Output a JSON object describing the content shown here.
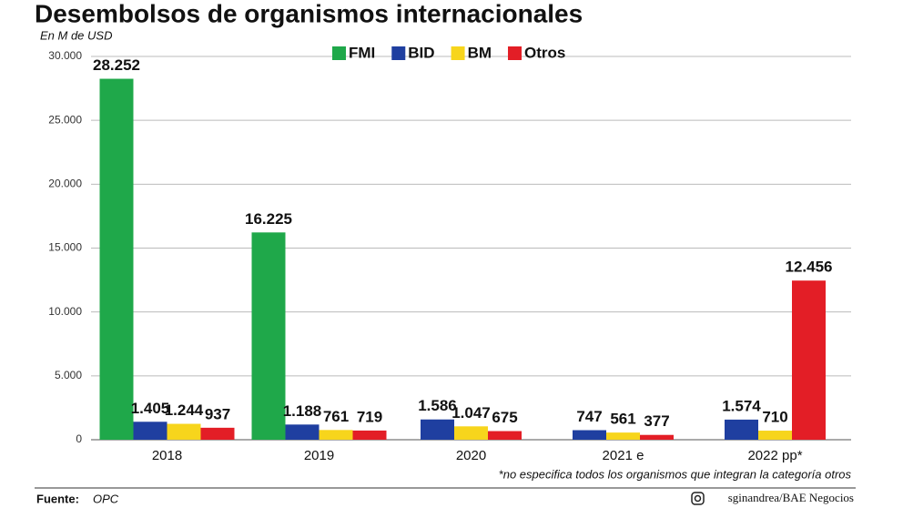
{
  "chart_data": {
    "type": "bar",
    "title": "Desembolsos de organismos internacionales",
    "subtitle": "En M de USD",
    "categories": [
      "2018",
      "2019",
      "2020",
      "2021 e",
      "2022 pp*"
    ],
    "series": [
      {
        "name": "FMI",
        "color": "#1fa84a",
        "values": [
          28252,
          16225,
          null,
          null,
          null
        ],
        "value_labels": [
          "28.252",
          "16.225",
          null,
          null,
          null
        ]
      },
      {
        "name": "BID",
        "color": "#1f3fa0",
        "values": [
          1405,
          1188,
          1586,
          747,
          1574
        ],
        "value_labels": [
          "1.405",
          "1.188",
          "1.586",
          "747",
          "1.574"
        ]
      },
      {
        "name": "BM",
        "color": "#f7d51c",
        "values": [
          1244,
          761,
          1047,
          561,
          710
        ],
        "value_labels": [
          "1.244",
          "761",
          "1.047",
          "561",
          "710"
        ]
      },
      {
        "name": "Otros",
        "color": "#e31e26",
        "values": [
          937,
          719,
          675,
          377,
          12456
        ],
        "value_labels": [
          "937",
          "719",
          "675",
          "377",
          "12.456"
        ]
      }
    ],
    "ylim": [
      0,
      30000
    ],
    "yticks": [
      {
        "value": 0,
        "label": "0"
      },
      {
        "value": 5000,
        "label": "5.000"
      },
      {
        "value": 10000,
        "label": "10.000"
      },
      {
        "value": 15000,
        "label": "15.000"
      },
      {
        "value": 20000,
        "label": "20.000"
      },
      {
        "value": 25000,
        "label": "25.000"
      },
      {
        "value": 30000,
        "label": "30.000"
      }
    ],
    "grid": true,
    "legend": "top",
    "footnote": "*no especifica todos los organismos que integran la categoría otros",
    "source_label": "Fuente:",
    "source": "OPC",
    "credit": "sginandrea/BAE Negocios"
  }
}
